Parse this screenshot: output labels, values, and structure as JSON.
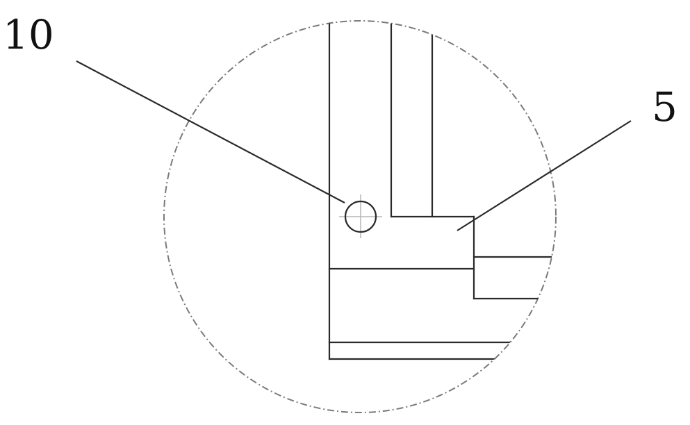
{
  "labels": {
    "part_10": "10",
    "part_5": "5"
  },
  "colors": {
    "ink": "#2a2a2a",
    "boundary": "#7a7a7a",
    "centerline": "#b5b5b5",
    "background": "#ffffff"
  }
}
